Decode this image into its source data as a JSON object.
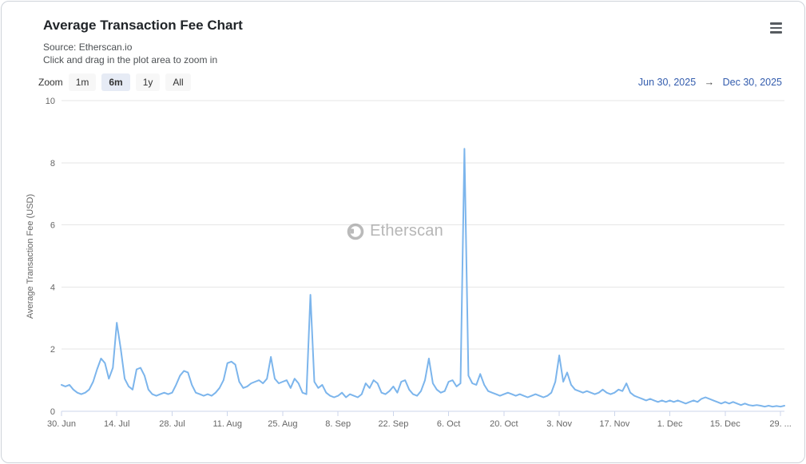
{
  "header": {
    "title": "Average Transaction Fee Chart",
    "source_line": "Source: Etherscan.io",
    "hint_line": "Click and drag in the plot area to zoom in"
  },
  "controls": {
    "zoom_label": "Zoom",
    "buttons": [
      {
        "label": "1m",
        "selected": false
      },
      {
        "label": "6m",
        "selected": true
      },
      {
        "label": "1y",
        "selected": false
      },
      {
        "label": "All",
        "selected": false
      }
    ],
    "date_from": "Jun 30, 2025",
    "range_arrow": "→",
    "date_to": "Dec 30, 2025"
  },
  "watermark": {
    "text": "Etherscan"
  },
  "colors": {
    "line": "#7cb5ec",
    "accent_blue": "#335cad",
    "selected_button_bg": "#e6ebf5",
    "grid": "#e6e6e6",
    "axis": "#ccd6eb"
  },
  "chart_data": {
    "type": "line",
    "title": "Average Transaction Fee Chart",
    "xlabel": "",
    "ylabel": "Average Transaction Fee (USD)",
    "ylim": [
      0,
      10
    ],
    "y_ticks": [
      0,
      2,
      4,
      6,
      8,
      10
    ],
    "grid": true,
    "legend": "none",
    "start_date": "2025-06-30",
    "end_date": "2025-12-30",
    "x_tick_labels": [
      "30. Jun",
      "14. Jul",
      "28. Jul",
      "11. Aug",
      "25. Aug",
      "8. Sep",
      "22. Sep",
      "6. Oct",
      "20. Oct",
      "3. Nov",
      "17. Nov",
      "1. Dec",
      "15. Dec",
      "29. ..."
    ],
    "x_tick_day_index": [
      0,
      14,
      28,
      42,
      56,
      70,
      84,
      98,
      112,
      126,
      140,
      154,
      168,
      182
    ],
    "line_color": "#7cb5ec",
    "series": [
      {
        "name": "Average Transaction Fee (USD)",
        "values": [
          0.85,
          0.8,
          0.85,
          0.7,
          0.6,
          0.55,
          0.6,
          0.7,
          0.95,
          1.35,
          1.7,
          1.55,
          1.05,
          1.4,
          2.85,
          2.0,
          1.05,
          0.8,
          0.7,
          1.35,
          1.4,
          1.15,
          0.7,
          0.55,
          0.5,
          0.55,
          0.6,
          0.55,
          0.6,
          0.85,
          1.15,
          1.3,
          1.25,
          0.85,
          0.6,
          0.55,
          0.5,
          0.55,
          0.5,
          0.6,
          0.75,
          1.0,
          1.55,
          1.6,
          1.5,
          0.95,
          0.75,
          0.8,
          0.9,
          0.95,
          1.0,
          0.9,
          1.05,
          1.75,
          1.05,
          0.9,
          0.95,
          1.0,
          0.75,
          1.05,
          0.9,
          0.6,
          0.55,
          3.75,
          0.95,
          0.75,
          0.85,
          0.6,
          0.5,
          0.45,
          0.5,
          0.6,
          0.45,
          0.55,
          0.5,
          0.45,
          0.55,
          0.9,
          0.75,
          1.0,
          0.9,
          0.6,
          0.55,
          0.65,
          0.8,
          0.6,
          0.95,
          1.0,
          0.7,
          0.55,
          0.5,
          0.65,
          1.0,
          1.7,
          0.9,
          0.7,
          0.6,
          0.65,
          0.95,
          1.0,
          0.8,
          0.9,
          8.45,
          1.15,
          0.9,
          0.85,
          1.2,
          0.85,
          0.65,
          0.6,
          0.55,
          0.5,
          0.55,
          0.6,
          0.55,
          0.5,
          0.55,
          0.5,
          0.45,
          0.5,
          0.55,
          0.5,
          0.45,
          0.5,
          0.6,
          0.95,
          1.8,
          0.95,
          1.25,
          0.85,
          0.7,
          0.65,
          0.6,
          0.65,
          0.6,
          0.55,
          0.6,
          0.7,
          0.6,
          0.55,
          0.6,
          0.7,
          0.65,
          0.9,
          0.6,
          0.5,
          0.45,
          0.4,
          0.35,
          0.4,
          0.35,
          0.3,
          0.35,
          0.3,
          0.35,
          0.3,
          0.35,
          0.3,
          0.25,
          0.3,
          0.35,
          0.3,
          0.4,
          0.45,
          0.4,
          0.35,
          0.3,
          0.25,
          0.3,
          0.25,
          0.3,
          0.25,
          0.2,
          0.25,
          0.2,
          0.18,
          0.2,
          0.18,
          0.15,
          0.18,
          0.15,
          0.17,
          0.15,
          0.18
        ]
      }
    ]
  }
}
